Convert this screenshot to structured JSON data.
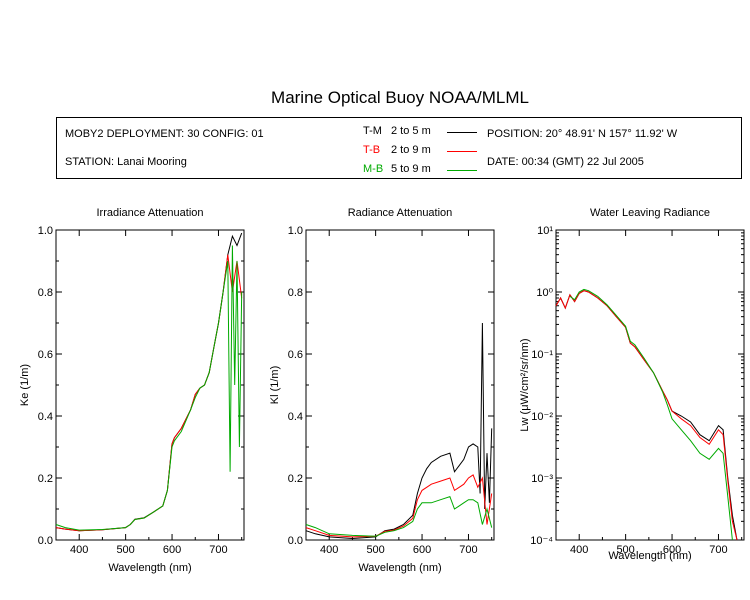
{
  "title": "Marine Optical Buoy NOAA/MLML",
  "info": {
    "deployment": "MOBY2 DEPLOYMENT: 30 CONFIG: 01",
    "station": "STATION: Lanai Mooring",
    "position": "POSITION: 20° 48.91' N   157° 11.92' W",
    "date": "DATE: 00:34 (GMT) 22 Jul 2005"
  },
  "colors": {
    "T-M": "#000000",
    "T-B": "#ff0000",
    "M-B": "#00aa00"
  },
  "legend": [
    {
      "code": "T-M",
      "range": "2 to 5  m",
      "color": "#000000"
    },
    {
      "code": "T-B",
      "range": "2 to 9  m",
      "color": "#ff0000"
    },
    {
      "code": "M-B",
      "range": "5 to 9  m",
      "color": "#00aa00"
    }
  ],
  "chart_data": [
    {
      "type": "line",
      "title": "Irradiance Attenuation",
      "xlabel": "Wavelength (nm)",
      "ylabel": "Ke  (1/m)",
      "xlim": [
        350,
        755
      ],
      "ylim": [
        0,
        1.0
      ],
      "yscale": "linear",
      "xticks": [
        400,
        500,
        600,
        700
      ],
      "yticks": [
        0.0,
        0.2,
        0.4,
        0.6,
        0.8,
        1.0
      ],
      "ytick_labels": [
        "0.0",
        "0.2",
        "0.4",
        "0.6",
        "0.8",
        "1.0"
      ],
      "series": [
        {
          "code": "T-M",
          "x": [
            350,
            370,
            400,
            450,
            500,
            510,
            520,
            540,
            560,
            580,
            590,
            600,
            605,
            620,
            640,
            650,
            660,
            670,
            680,
            690,
            700,
            710,
            720,
            730,
            740,
            750
          ],
          "y": [
            0.04,
            0.035,
            0.03,
            0.033,
            0.04,
            0.05,
            0.067,
            0.072,
            0.09,
            0.11,
            0.16,
            0.31,
            0.33,
            0.36,
            0.42,
            0.47,
            0.49,
            0.5,
            0.54,
            0.62,
            0.7,
            0.8,
            0.92,
            0.98,
            0.95,
            0.99
          ]
        },
        {
          "code": "T-B",
          "x": [
            350,
            370,
            400,
            450,
            500,
            510,
            520,
            540,
            560,
            580,
            590,
            600,
            605,
            620,
            640,
            650,
            660,
            670,
            680,
            690,
            700,
            710,
            720,
            730,
            740,
            750
          ],
          "y": [
            0.04,
            0.035,
            0.03,
            0.033,
            0.04,
            0.05,
            0.066,
            0.071,
            0.09,
            0.11,
            0.16,
            0.31,
            0.33,
            0.36,
            0.42,
            0.47,
            0.49,
            0.5,
            0.54,
            0.62,
            0.7,
            0.8,
            0.92,
            0.8,
            0.9,
            0.78
          ]
        },
        {
          "code": "M-B",
          "x": [
            350,
            370,
            400,
            450,
            500,
            510,
            520,
            540,
            560,
            580,
            590,
            600,
            605,
            620,
            640,
            650,
            660,
            670,
            680,
            690,
            700,
            710,
            720,
            725,
            730,
            735,
            740,
            745,
            750
          ],
          "y": [
            0.05,
            0.04,
            0.032,
            0.034,
            0.04,
            0.05,
            0.066,
            0.071,
            0.09,
            0.11,
            0.16,
            0.3,
            0.32,
            0.35,
            0.42,
            0.46,
            0.49,
            0.5,
            0.54,
            0.62,
            0.7,
            0.8,
            0.9,
            0.22,
            0.95,
            0.5,
            0.9,
            0.3,
            0.8
          ]
        }
      ]
    },
    {
      "type": "line",
      "title": "Radiance Attenuation",
      "xlabel": "Wavelength (nm)",
      "ylabel": "Kl  (1/m)",
      "xlim": [
        350,
        755
      ],
      "ylim": [
        0,
        1.0
      ],
      "yscale": "linear",
      "xticks": [
        400,
        500,
        600,
        700
      ],
      "yticks": [
        0.0,
        0.2,
        0.4,
        0.6,
        0.8,
        1.0
      ],
      "ytick_labels": [
        "0.0",
        "0.2",
        "0.4",
        "0.6",
        "0.8",
        "1.0"
      ],
      "series": [
        {
          "code": "T-M",
          "x": [
            350,
            370,
            400,
            450,
            500,
            520,
            540,
            560,
            580,
            590,
            600,
            610,
            620,
            640,
            660,
            670,
            680,
            690,
            700,
            710,
            720,
            725,
            730,
            735,
            740,
            745,
            750
          ],
          "y": [
            0.03,
            0.02,
            0.01,
            0.005,
            0.01,
            0.03,
            0.035,
            0.05,
            0.08,
            0.15,
            0.2,
            0.23,
            0.25,
            0.27,
            0.28,
            0.22,
            0.24,
            0.26,
            0.3,
            0.31,
            0.3,
            0.15,
            0.7,
            0.1,
            0.28,
            0.12,
            0.36
          ]
        },
        {
          "code": "T-B",
          "x": [
            350,
            370,
            400,
            450,
            500,
            520,
            540,
            560,
            580,
            590,
            600,
            610,
            620,
            640,
            660,
            670,
            680,
            690,
            700,
            710,
            720,
            730,
            740,
            750
          ],
          "y": [
            0.04,
            0.03,
            0.015,
            0.01,
            0.012,
            0.028,
            0.032,
            0.045,
            0.07,
            0.13,
            0.16,
            0.17,
            0.18,
            0.19,
            0.2,
            0.16,
            0.17,
            0.18,
            0.2,
            0.21,
            0.17,
            0.2,
            0.05,
            0.15
          ]
        },
        {
          "code": "M-B",
          "x": [
            350,
            370,
            400,
            450,
            500,
            520,
            540,
            560,
            580,
            590,
            600,
            610,
            620,
            640,
            660,
            670,
            680,
            690,
            700,
            710,
            720,
            730,
            740,
            750
          ],
          "y": [
            0.05,
            0.04,
            0.02,
            0.015,
            0.012,
            0.025,
            0.03,
            0.04,
            0.06,
            0.1,
            0.12,
            0.12,
            0.12,
            0.13,
            0.14,
            0.1,
            0.11,
            0.12,
            0.13,
            0.13,
            0.12,
            0.05,
            0.1,
            0.04
          ]
        }
      ]
    },
    {
      "type": "line",
      "title": "Water Leaving Radiance",
      "xlabel": "Wavelength (nm)",
      "ylabel": "Lw  (μW/cm²/sr/nm)",
      "xlim": [
        350,
        755
      ],
      "ylim": [
        0.0001,
        10
      ],
      "yscale": "log",
      "xticks": [
        400,
        500,
        600,
        700
      ],
      "yticks": [
        0.0001,
        0.001,
        0.01,
        0.1,
        1,
        10
      ],
      "ytick_labels": [
        "10⁻⁴",
        "10⁻³",
        "10⁻²",
        "10⁻¹",
        "10⁰",
        "10¹"
      ],
      "series": [
        {
          "code": "T-M",
          "x": [
            350,
            360,
            370,
            380,
            390,
            400,
            410,
            420,
            440,
            460,
            480,
            500,
            510,
            520,
            540,
            560,
            580,
            590,
            600,
            620,
            640,
            660,
            680,
            700,
            710,
            720,
            730,
            740
          ],
          "y": [
            0.6,
            0.8,
            0.55,
            0.9,
            0.7,
            0.95,
            1.05,
            1.0,
            0.8,
            0.6,
            0.4,
            0.27,
            0.15,
            0.13,
            0.08,
            0.05,
            0.025,
            0.018,
            0.012,
            0.01,
            0.008,
            0.005,
            0.004,
            0.007,
            0.006,
            0.001,
            0.00025,
            0.0001
          ]
        },
        {
          "code": "T-B",
          "x": [
            350,
            360,
            370,
            380,
            390,
            400,
            410,
            420,
            440,
            460,
            480,
            500,
            510,
            520,
            540,
            560,
            580,
            590,
            600,
            620,
            640,
            660,
            680,
            700,
            710,
            720,
            730,
            740
          ],
          "y": [
            0.6,
            0.8,
            0.55,
            0.9,
            0.7,
            0.95,
            1.05,
            1.0,
            0.8,
            0.6,
            0.4,
            0.27,
            0.15,
            0.13,
            0.08,
            0.05,
            0.025,
            0.018,
            0.012,
            0.009,
            0.007,
            0.0045,
            0.0035,
            0.006,
            0.005,
            0.0009,
            0.0002,
            0.0001
          ]
        },
        {
          "code": "M-B",
          "x": [
            380,
            390,
            400,
            410,
            420,
            440,
            460,
            480,
            500,
            510,
            520,
            540,
            560,
            580,
            590,
            600,
            620,
            640,
            660,
            680,
            700,
            710,
            720,
            730
          ],
          "y": [
            0.85,
            0.75,
            1.0,
            1.1,
            1.05,
            0.85,
            0.62,
            0.42,
            0.28,
            0.16,
            0.14,
            0.085,
            0.05,
            0.024,
            0.015,
            0.009,
            0.006,
            0.004,
            0.0025,
            0.002,
            0.003,
            0.0025,
            0.0005,
            0.0001
          ]
        }
      ]
    }
  ]
}
